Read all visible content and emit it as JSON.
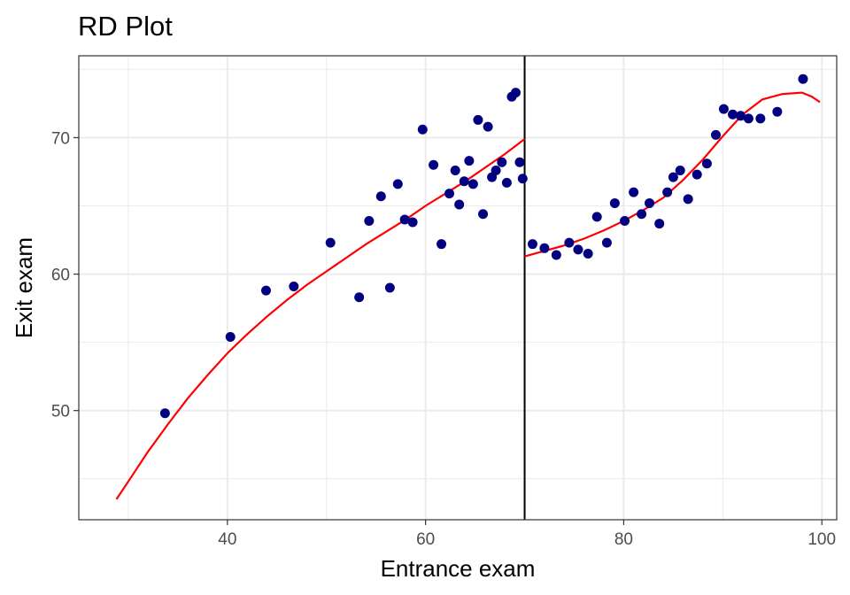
{
  "chart_data": {
    "type": "scatter",
    "title": "RD Plot",
    "xlabel": "Entrance exam",
    "ylabel": "Exit exam",
    "xlim": [
      25,
      101.5
    ],
    "ylim": [
      42,
      76
    ],
    "x_ticks": [
      40,
      60,
      80,
      100
    ],
    "y_ticks": [
      50,
      60,
      70
    ],
    "x_tick_labels": [
      "40",
      "60",
      "80",
      "100"
    ],
    "y_tick_labels": [
      "50",
      "60",
      "70"
    ],
    "grid": true,
    "cutoff": 70,
    "colors": {
      "points": "#000080",
      "fit": "#ff0000",
      "cutoff": "#000000",
      "grid": "#ebebeb",
      "panel_border": "#333333"
    },
    "points": [
      [
        33.7,
        49.8
      ],
      [
        40.3,
        55.4
      ],
      [
        43.9,
        58.8
      ],
      [
        46.7,
        59.1
      ],
      [
        50.4,
        62.3
      ],
      [
        53.3,
        58.3
      ],
      [
        54.3,
        63.9
      ],
      [
        55.5,
        65.7
      ],
      [
        56.4,
        59.0
      ],
      [
        57.2,
        66.6
      ],
      [
        57.9,
        64.0
      ],
      [
        58.7,
        63.8
      ],
      [
        59.7,
        70.6
      ],
      [
        60.8,
        68.0
      ],
      [
        61.6,
        62.2
      ],
      [
        62.4,
        65.9
      ],
      [
        63.0,
        67.6
      ],
      [
        63.4,
        65.1
      ],
      [
        63.9,
        66.8
      ],
      [
        64.4,
        68.3
      ],
      [
        64.8,
        66.6
      ],
      [
        65.3,
        71.3
      ],
      [
        65.8,
        64.4
      ],
      [
        66.3,
        70.8
      ],
      [
        66.7,
        67.1
      ],
      [
        67.1,
        67.6
      ],
      [
        67.7,
        68.2
      ],
      [
        68.2,
        66.7
      ],
      [
        68.7,
        73.0
      ],
      [
        69.1,
        73.3
      ],
      [
        69.5,
        68.2
      ],
      [
        69.8,
        67.0
      ],
      [
        70.8,
        62.2
      ],
      [
        72.0,
        61.9
      ],
      [
        73.2,
        61.4
      ],
      [
        74.5,
        62.3
      ],
      [
        75.4,
        61.8
      ],
      [
        76.4,
        61.5
      ],
      [
        77.3,
        64.2
      ],
      [
        78.3,
        62.3
      ],
      [
        79.1,
        65.2
      ],
      [
        80.1,
        63.9
      ],
      [
        81.0,
        66.0
      ],
      [
        81.8,
        64.4
      ],
      [
        82.6,
        65.2
      ],
      [
        83.6,
        63.7
      ],
      [
        84.4,
        66.0
      ],
      [
        85.0,
        67.1
      ],
      [
        85.7,
        67.6
      ],
      [
        86.5,
        65.5
      ],
      [
        87.4,
        67.3
      ],
      [
        88.4,
        68.1
      ],
      [
        89.3,
        70.2
      ],
      [
        90.1,
        72.1
      ],
      [
        91.0,
        71.7
      ],
      [
        91.8,
        71.6
      ],
      [
        92.6,
        71.4
      ],
      [
        93.8,
        71.4
      ],
      [
        95.5,
        71.9
      ],
      [
        98.1,
        74.3
      ]
    ],
    "fit_left": [
      [
        28.8,
        43.5
      ],
      [
        30.0,
        44.8
      ],
      [
        32.0,
        47.0
      ],
      [
        34.0,
        49.0
      ],
      [
        36.0,
        50.9
      ],
      [
        38.0,
        52.6
      ],
      [
        40.0,
        54.2
      ],
      [
        42.0,
        55.6
      ],
      [
        44.0,
        56.9
      ],
      [
        46.0,
        58.1
      ],
      [
        48.0,
        59.2
      ],
      [
        50.0,
        60.2
      ],
      [
        52.0,
        61.2
      ],
      [
        54.0,
        62.2
      ],
      [
        56.0,
        63.1
      ],
      [
        58.0,
        64.0
      ],
      [
        60.0,
        65.0
      ],
      [
        62.0,
        65.9
      ],
      [
        64.0,
        66.8
      ],
      [
        66.0,
        67.8
      ],
      [
        68.0,
        68.8
      ],
      [
        70.0,
        69.9
      ]
    ],
    "fit_right": [
      [
        70.0,
        61.3
      ],
      [
        72.0,
        61.7
      ],
      [
        74.0,
        62.1
      ],
      [
        76.0,
        62.6
      ],
      [
        78.0,
        63.2
      ],
      [
        80.0,
        63.9
      ],
      [
        82.0,
        64.7
      ],
      [
        84.0,
        65.6
      ],
      [
        86.0,
        66.9
      ],
      [
        88.0,
        68.4
      ],
      [
        90.0,
        70.1
      ],
      [
        92.0,
        71.7
      ],
      [
        94.0,
        72.8
      ],
      [
        96.0,
        73.2
      ],
      [
        98.0,
        73.3
      ],
      [
        99.0,
        73.0
      ],
      [
        99.8,
        72.6
      ]
    ]
  }
}
